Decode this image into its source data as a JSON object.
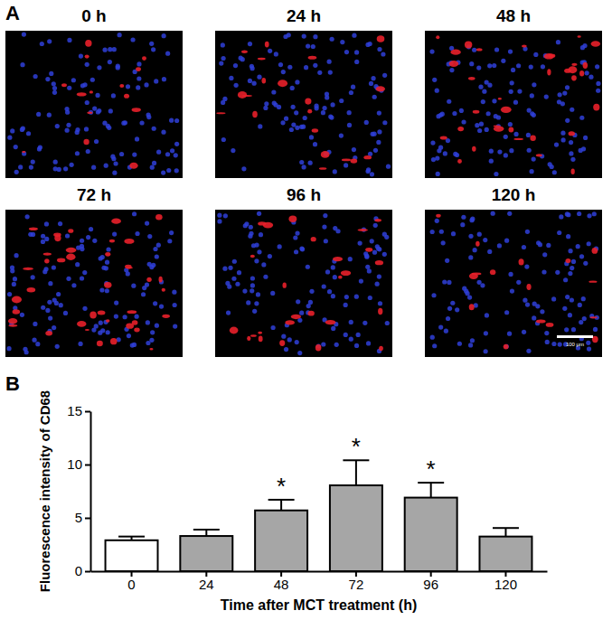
{
  "chart_data": {
    "type": "bar",
    "x_label": "Time after MCT treatment (h)",
    "y_label": "Fluorescence intensity of CD68",
    "categories": [
      "0",
      "24",
      "48",
      "72",
      "96",
      "120"
    ],
    "values": [
      2.9,
      3.3,
      5.7,
      8.05,
      6.9,
      3.25
    ],
    "errors": [
      0.35,
      0.6,
      1.0,
      2.35,
      1.4,
      0.8
    ],
    "colors": [
      "#ffffff",
      "#a6a6a6",
      "#a6a6a6",
      "#a6a6a6",
      "#a6a6a6",
      "#a6a6a6"
    ],
    "ylim": [
      0,
      15
    ],
    "yticks": [
      0,
      5,
      10,
      15
    ],
    "grid": false,
    "annotations": [
      {
        "category": "48",
        "text": "*"
      },
      {
        "category": "72",
        "text": "*"
      },
      {
        "category": "96",
        "text": "*"
      }
    ]
  },
  "panels": {
    "label_a": "A",
    "label_b": "B",
    "images": [
      "0 h",
      "24 h",
      "48 h",
      "72 h",
      "96 h",
      "120 h"
    ],
    "scale_bar": "100 μm"
  }
}
